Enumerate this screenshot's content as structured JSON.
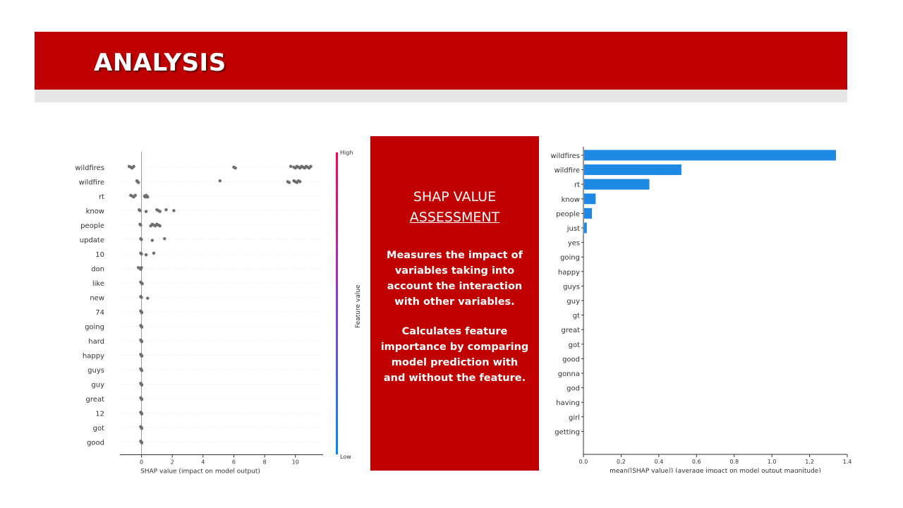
{
  "slide": {
    "title": "ANALYSIS",
    "box": {
      "heading_line1": "SHAP VALUE",
      "heading_line2": "ASSESSMENT",
      "para1": "Measures the impact of variables taking into account the interaction with other variables.",
      "para2": "Calculates feature importance by comparing model prediction with and without the feature."
    },
    "colors": {
      "banner": "#c00000",
      "bar": "#1e88e5",
      "dots": "#6e6e6e",
      "cbar_high": "#ff0052",
      "cbar_low": "#008afb"
    }
  },
  "chart_data": [
    {
      "type": "scatter",
      "subtype": "shap-beeswarm",
      "features": [
        "wildfires",
        "wildfire",
        "rt",
        "know",
        "people",
        "update",
        "10",
        "don",
        "like",
        "new",
        "74",
        "going",
        "hard",
        "happy",
        "guys",
        "guy",
        "great",
        "12",
        "got",
        "good"
      ],
      "series": [
        {
          "feature": "wildfires",
          "points": [
            -0.8,
            -0.7,
            -0.6,
            -0.5,
            6.0,
            6.1,
            9.7,
            9.9,
            10.0,
            10.1,
            10.2,
            10.3,
            10.4,
            10.5,
            10.6,
            10.7,
            10.8,
            10.9,
            11.0
          ]
        },
        {
          "feature": "wildfire",
          "points": [
            -0.3,
            -0.25,
            -0.2,
            5.1,
            9.5,
            9.6,
            9.9,
            10.0,
            10.1,
            10.2,
            10.3
          ]
        },
        {
          "feature": "rt",
          "points": [
            -0.7,
            -0.6,
            -0.5,
            -0.4,
            0.2,
            0.25,
            0.3,
            0.35,
            0.4
          ]
        },
        {
          "feature": "know",
          "points": [
            -0.15,
            -0.1,
            0.3,
            1.0,
            1.1,
            1.2,
            1.6,
            2.1
          ]
        },
        {
          "feature": "people",
          "points": [
            -0.1,
            -0.05,
            0.6,
            0.7,
            0.8,
            0.9,
            1.0,
            1.1,
            1.2
          ]
        },
        {
          "feature": "update",
          "points": [
            -0.05,
            0.0,
            0.7,
            1.5
          ]
        },
        {
          "feature": "10",
          "points": [
            -0.05,
            0.0,
            0.3,
            0.8
          ]
        },
        {
          "feature": "don",
          "points": [
            -0.2,
            -0.1,
            -0.05,
            0.0
          ]
        },
        {
          "feature": "like",
          "points": [
            -0.05,
            0.0,
            0.05
          ]
        },
        {
          "feature": "new",
          "points": [
            -0.05,
            0.0,
            0.4
          ]
        },
        {
          "feature": "74",
          "points": [
            -0.05,
            0.0,
            0.02
          ]
        },
        {
          "feature": "going",
          "points": [
            -0.05,
            0.0,
            0.02
          ]
        },
        {
          "feature": "hard",
          "points": [
            -0.05,
            0.0,
            0.02
          ]
        },
        {
          "feature": "happy",
          "points": [
            -0.05,
            0.0,
            0.02
          ]
        },
        {
          "feature": "guys",
          "points": [
            -0.05,
            0.0,
            0.02
          ]
        },
        {
          "feature": "guy",
          "points": [
            -0.05,
            0.0,
            0.02
          ]
        },
        {
          "feature": "great",
          "points": [
            -0.05,
            0.0,
            0.02
          ]
        },
        {
          "feature": "12",
          "points": [
            -0.05,
            0.0,
            0.02
          ]
        },
        {
          "feature": "got",
          "points": [
            -0.05,
            0.0,
            0.02
          ]
        },
        {
          "feature": "good",
          "points": [
            -0.05,
            0.0,
            0.02
          ]
        }
      ],
      "xlabel": "SHAP value (impact on model output)",
      "xticks": [
        0,
        2,
        4,
        6,
        8,
        10
      ],
      "xlim": [
        -1.4,
        11.8
      ],
      "colorbar": {
        "label": "Feature value",
        "high": "High",
        "low": "Low"
      }
    },
    {
      "type": "bar",
      "orientation": "horizontal",
      "categories": [
        "wildfires",
        "wildfire",
        "rt",
        "know",
        "people",
        "just",
        "yes",
        "going",
        "happy",
        "guys",
        "guy",
        "gt",
        "great",
        "got",
        "good",
        "gonna",
        "god",
        "having",
        "girl",
        "getting"
      ],
      "values": [
        1.34,
        0.52,
        0.35,
        0.065,
        0.045,
        0.018,
        0,
        0,
        0,
        0,
        0,
        0,
        0,
        0,
        0,
        0,
        0,
        0,
        0,
        0
      ],
      "xlabel": "mean(|SHAP value|) (average impact on model output magnitude)",
      "xticks": [
        0.0,
        0.2,
        0.4,
        0.6,
        0.8,
        1.0,
        1.2,
        1.4
      ],
      "xlim": [
        0,
        1.4
      ]
    }
  ]
}
